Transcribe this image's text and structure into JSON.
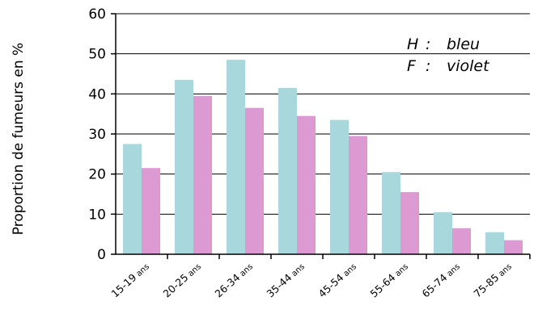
{
  "chart_data": {
    "type": "bar",
    "ylabel": "Proportion de fumeurs en %",
    "ylim": [
      0,
      60
    ],
    "yticks": [
      0,
      10,
      20,
      30,
      40,
      50,
      60
    ],
    "grid": true,
    "legend_position": "top-right",
    "categories": [
      {
        "range": "15-19",
        "unit": "ans"
      },
      {
        "range": "20-25",
        "unit": "ans"
      },
      {
        "range": "26-34",
        "unit": "ans"
      },
      {
        "range": "35-44",
        "unit": "ans"
      },
      {
        "range": "45-54",
        "unit": "ans"
      },
      {
        "range": "55-64",
        "unit": "ans"
      },
      {
        "range": "65-74",
        "unit": "ans"
      },
      {
        "range": "75-85",
        "unit": "ans"
      }
    ],
    "series": [
      {
        "name": "H",
        "color": "#a8d8dc",
        "values": [
          27.5,
          43.5,
          48.5,
          41.5,
          33.5,
          20.5,
          10.5,
          5.5
        ]
      },
      {
        "name": "F",
        "color": "#dd99d2",
        "values": [
          21.5,
          39.5,
          36.5,
          34.5,
          29.5,
          15.5,
          6.5,
          3.5
        ]
      }
    ],
    "legend": [
      {
        "letter": "H",
        "sep": ":",
        "text": "bleu"
      },
      {
        "letter": "F",
        "sep": ":",
        "text": "violet"
      }
    ]
  }
}
